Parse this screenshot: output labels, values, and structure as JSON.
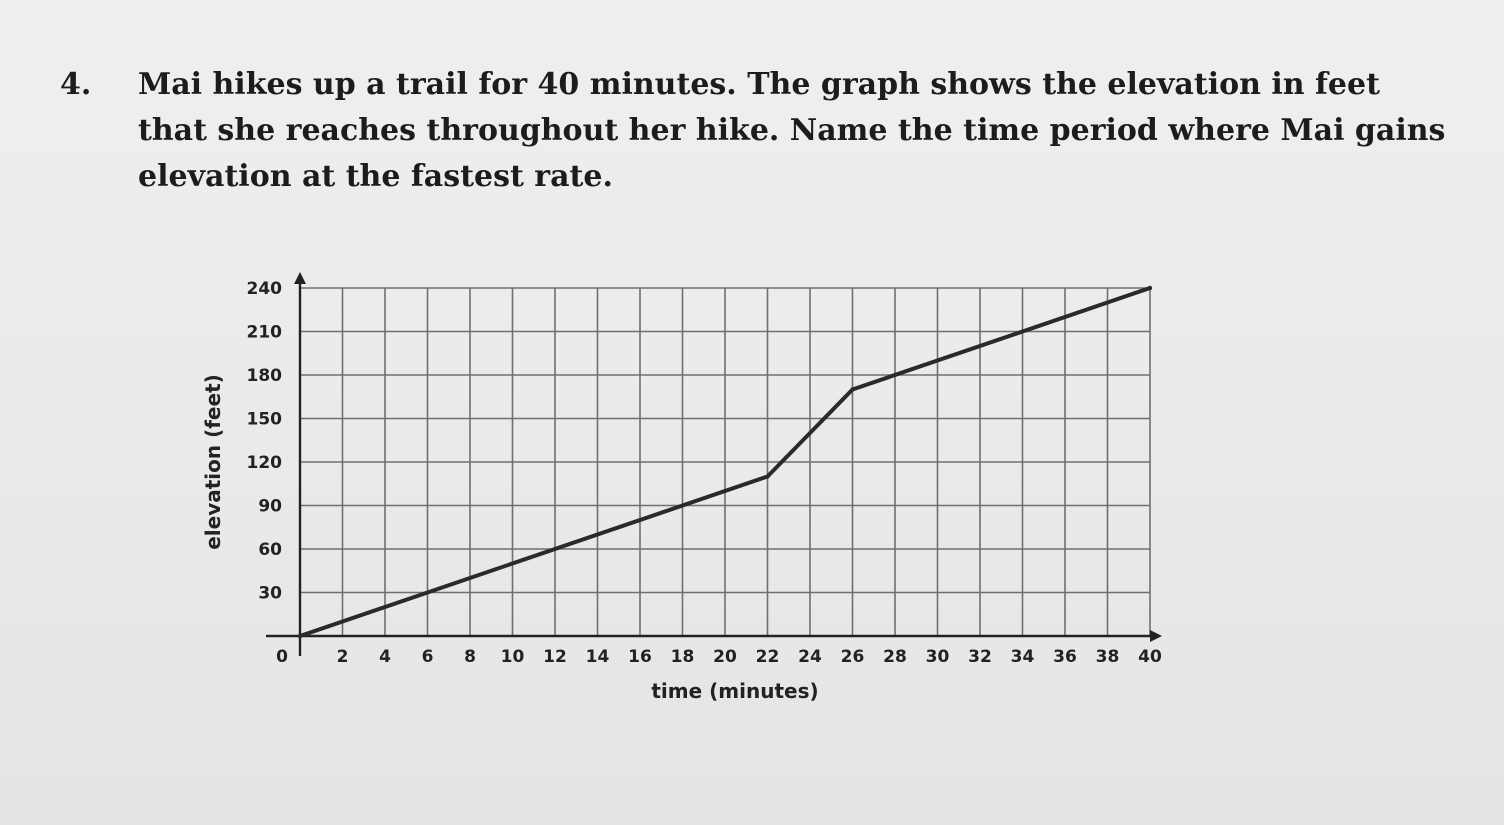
{
  "question": {
    "number": "4.",
    "text": "Mai hikes up a trail for 40 minutes. The graph shows the elevation in feet that she reaches throughout her hike. Name the time period where Mai gains elevation at the fastest rate."
  },
  "chart_data": {
    "type": "line",
    "title": "",
    "xlabel": "time (minutes)",
    "ylabel": "elevation (feet)",
    "xlim": [
      0,
      40
    ],
    "ylim": [
      0,
      240
    ],
    "x_ticks": [
      2,
      4,
      6,
      8,
      10,
      12,
      14,
      16,
      18,
      20,
      22,
      24,
      26,
      28,
      30,
      32,
      34,
      36,
      38,
      40
    ],
    "y_ticks": [
      30,
      60,
      90,
      120,
      150,
      180,
      210,
      240
    ],
    "origin_label": "0",
    "grid": true,
    "series": [
      {
        "x": [
          0,
          22,
          26,
          40
        ],
        "y": [
          0,
          110,
          170,
          240
        ]
      }
    ],
    "colors": {
      "line": "#2a2a2a",
      "grid": "#6f6f6f",
      "axis": "#222222"
    }
  }
}
